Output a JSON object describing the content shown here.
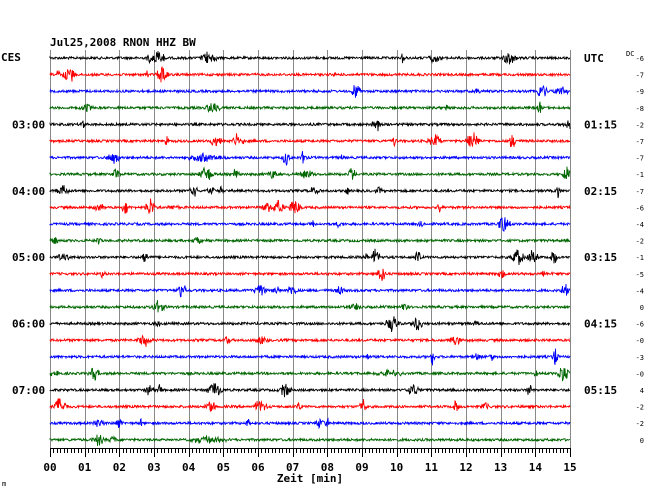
{
  "chart_data": {
    "type": "line",
    "title": "Jul25,2008   RNON HHZ BW",
    "left_timezone": "CES",
    "right_timezone": "UTC",
    "xlabel": "Zeit [min]",
    "x_ticks": [
      "00",
      "01",
      "02",
      "03",
      "04",
      "05",
      "06",
      "07",
      "08",
      "09",
      "10",
      "11",
      "12",
      "13",
      "14",
      "15"
    ],
    "xlim": [
      0,
      15
    ],
    "trace_count": 24,
    "trace_colors": [
      "#000000",
      "#ff0000",
      "#0000ff",
      "#006600"
    ],
    "left_hour_labels": [
      {
        "trace": 4,
        "label": "03:00"
      },
      {
        "trace": 8,
        "label": "04:00"
      },
      {
        "trace": 12,
        "label": "05:00"
      },
      {
        "trace": 16,
        "label": "06:00"
      },
      {
        "trace": 20,
        "label": "07:00"
      }
    ],
    "right_hour_labels": [
      {
        "trace": 0,
        "label": "UTC"
      },
      {
        "trace": 4,
        "label": "01:15"
      },
      {
        "trace": 8,
        "label": "02:15"
      },
      {
        "trace": 12,
        "label": "03:15"
      },
      {
        "trace": 16,
        "label": "04:15"
      },
      {
        "trace": 20,
        "label": "05:15"
      }
    ],
    "dc_header": "DC",
    "dc_offsets": [
      "-6",
      "-7",
      "-9",
      "-8",
      "-2",
      "-7",
      "-7",
      "-1",
      "-7",
      "-6",
      "-4",
      "-2",
      "-1",
      "-5",
      "-4",
      "0",
      "-6",
      "-0",
      "-3",
      "-0",
      "4",
      "-2",
      "-2",
      "0"
    ],
    "corner_mark": "m",
    "grid": true
  }
}
